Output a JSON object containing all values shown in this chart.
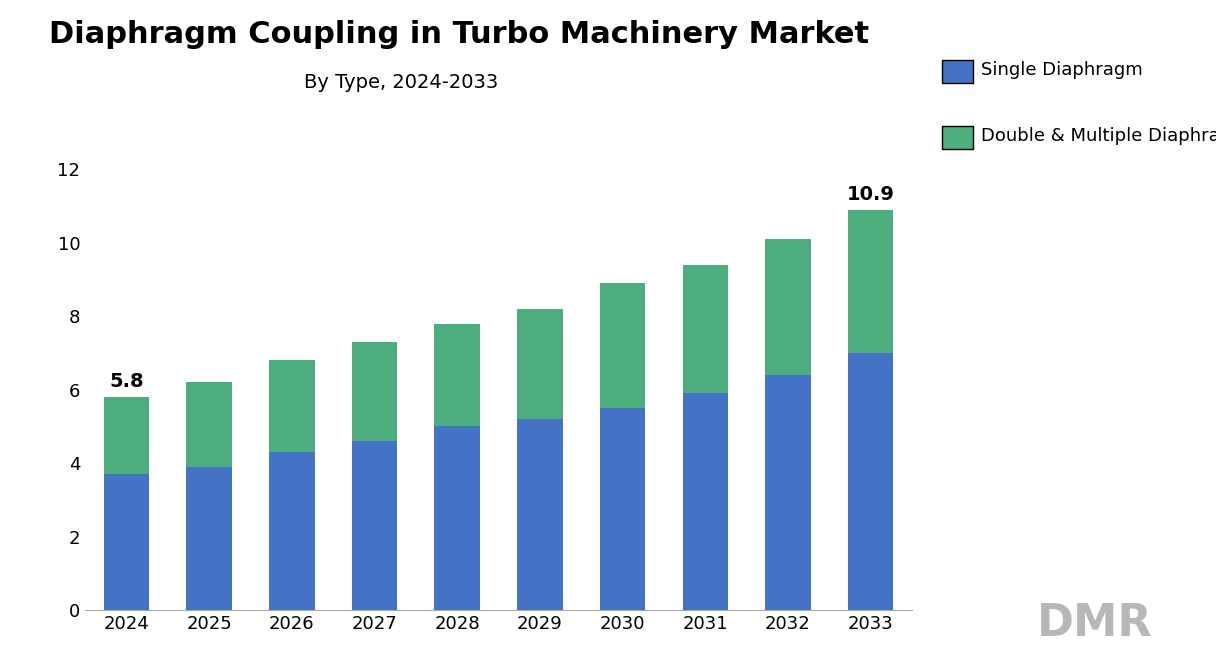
{
  "title": "Diaphragm Coupling in Turbo Machinery Market",
  "subtitle": "By Type, 2024-2033",
  "years": [
    "2024",
    "2025",
    "2026",
    "2027",
    "2028",
    "2029",
    "2030",
    "2031",
    "2032",
    "2033"
  ],
  "single_diaphragm": [
    3.7,
    3.9,
    4.3,
    4.6,
    5.0,
    5.2,
    5.5,
    5.9,
    6.4,
    7.0
  ],
  "double_diaphragm": [
    2.1,
    2.3,
    2.5,
    2.7,
    2.8,
    3.0,
    3.4,
    3.5,
    3.7,
    3.9
  ],
  "totals": [
    5.8,
    6.2,
    6.8,
    7.3,
    7.8,
    8.2,
    8.9,
    9.4,
    10.1,
    10.9
  ],
  "single_color": "#4472C4",
  "double_color": "#4CAF7D",
  "legend_single": "Single Diaphragm",
  "legend_double": "Double & Multiple Diaphragm",
  "ylim": [
    0,
    13
  ],
  "yticks": [
    0,
    2,
    4,
    6,
    8,
    10,
    12
  ],
  "background_color": "#FFFFFF",
  "title_fontsize": 22,
  "subtitle_fontsize": 14,
  "tick_fontsize": 13,
  "legend_fontsize": 13,
  "annotation_fontsize": 14
}
